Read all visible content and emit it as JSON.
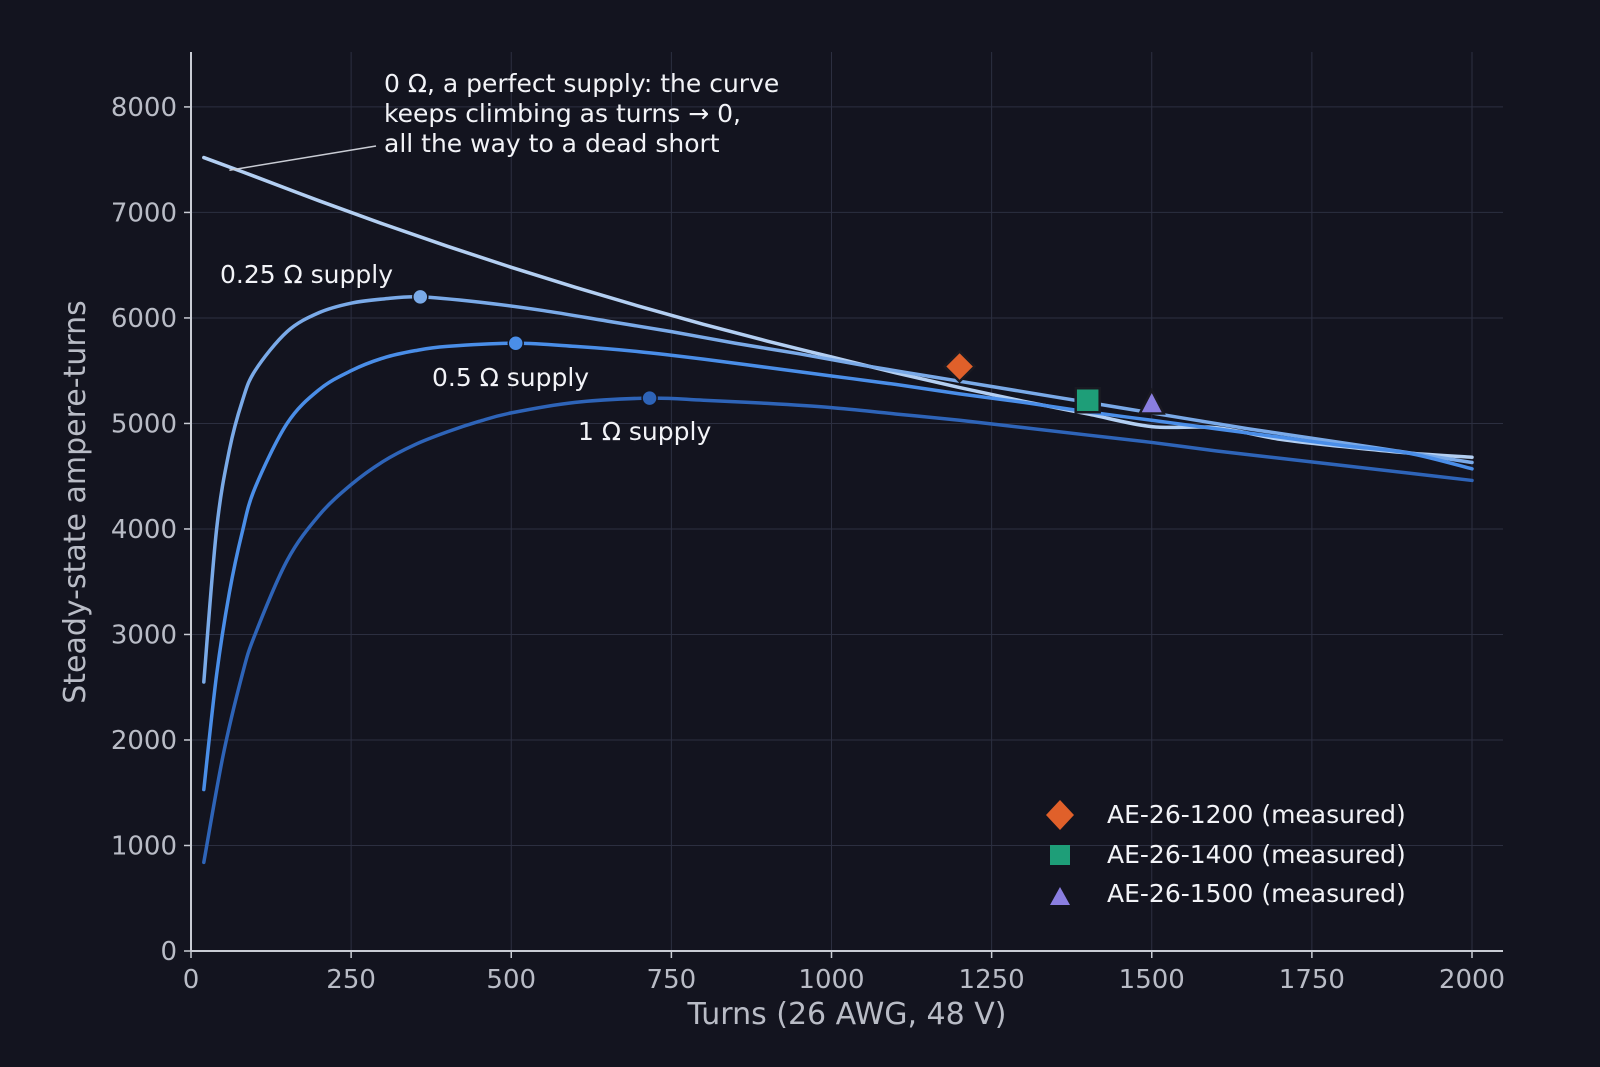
{
  "chart_data": {
    "type": "line",
    "title": "",
    "xlabel": "Turns (26 AWG, 48 V)",
    "ylabel": "Steady-state ampere-turns",
    "xlim": [
      0,
      2050
    ],
    "ylim": [
      0,
      8500
    ],
    "xticks": [
      0,
      250,
      500,
      750,
      1000,
      1250,
      1500,
      1750,
      2000
    ],
    "yticks": [
      0,
      1000,
      2000,
      3000,
      4000,
      5000,
      6000,
      7000,
      8000
    ],
    "grid": true,
    "series": [
      {
        "name": "0 Ω",
        "color": "#b3cff2",
        "x": [
          20,
          100,
          200,
          300,
          400,
          500,
          600,
          700,
          800,
          900,
          1000,
          1100,
          1200,
          1300,
          1400,
          1500,
          1600,
          1700,
          1800,
          1900,
          2000
        ],
        "y": [
          7520,
          7340,
          7110,
          6890,
          6680,
          6480,
          6290,
          6110,
          5940,
          5780,
          5630,
          5480,
          5340,
          5210,
          5090,
          4970,
          4960,
          4850,
          4780,
          4720,
          4680
        ]
      },
      {
        "name": "0.25 Ω supply",
        "color": "#7aaae8",
        "x": [
          20,
          40,
          60,
          80,
          100,
          150,
          200,
          250,
          300,
          358,
          450,
          550,
          650,
          750,
          850,
          950,
          1050,
          1150,
          1250,
          1350,
          1450,
          1550,
          1650,
          1750,
          1850,
          2000
        ],
        "y": [
          2550,
          4000,
          4750,
          5210,
          5500,
          5870,
          6050,
          6140,
          6180,
          6200,
          6150,
          6070,
          5970,
          5870,
          5760,
          5660,
          5550,
          5450,
          5350,
          5250,
          5150,
          5050,
          4950,
          4860,
          4770,
          4630
        ]
      },
      {
        "name": "0.5 Ω supply",
        "color": "#4a8ee8",
        "x": [
          20,
          40,
          60,
          80,
          100,
          150,
          200,
          250,
          300,
          350,
          400,
          507,
          600,
          700,
          800,
          900,
          1000,
          1100,
          1200,
          1300,
          1400,
          1500,
          1600,
          1700,
          1800,
          1900,
          2000
        ],
        "y": [
          1530,
          2620,
          3400,
          3970,
          4390,
          5000,
          5320,
          5500,
          5620,
          5690,
          5730,
          5760,
          5730,
          5680,
          5610,
          5530,
          5450,
          5370,
          5280,
          5200,
          5110,
          5030,
          4950,
          4870,
          4790,
          4720,
          4570
        ]
      },
      {
        "name": "1 Ω supply",
        "color": "#2e64b8",
        "x": [
          20,
          50,
          80,
          100,
          150,
          200,
          250,
          300,
          350,
          400,
          450,
          500,
          600,
          716,
          800,
          900,
          1000,
          1100,
          1200,
          1300,
          1400,
          1500,
          1600,
          1700,
          1800,
          1900,
          2000
        ],
        "y": [
          840,
          1850,
          2620,
          3000,
          3700,
          4130,
          4420,
          4640,
          4800,
          4920,
          5020,
          5100,
          5200,
          5240,
          5220,
          5190,
          5150,
          5090,
          5030,
          4960,
          4890,
          4820,
          4740,
          4670,
          4600,
          4530,
          4460
        ]
      }
    ],
    "peaks": [
      {
        "series": "0.25 Ω supply",
        "x": 358,
        "y": 6200
      },
      {
        "series": "0.5 Ω supply",
        "x": 507,
        "y": 5760
      },
      {
        "series": "1 Ω supply",
        "x": 716,
        "y": 5240
      }
    ],
    "measured": [
      {
        "name": "AE-26-1200 (measured)",
        "x": 1200,
        "y": 5540,
        "marker": "diamond",
        "color": "#e0602a"
      },
      {
        "name": "AE-26-1400 (measured)",
        "x": 1400,
        "y": 5220,
        "marker": "square",
        "color": "#1e9e78"
      },
      {
        "name": "AE-26-1500 (measured)",
        "x": 1500,
        "y": 5180,
        "marker": "triangle",
        "color": "#8a7ee0"
      }
    ],
    "annotations": {
      "zero_ohm_lines": [
        "0 Ω, a perfect supply: the curve",
        "keeps climbing as turns → 0,",
        "all the way to a dead short"
      ],
      "zero_ohm_target": {
        "x": 60,
        "y": 7400
      },
      "quarter_ohm": "0.25 Ω supply",
      "half_ohm": "0.5 Ω supply",
      "one_ohm": "1 Ω supply"
    },
    "legend_position": "lower-right",
    "colors": {
      "background": "#13141f",
      "grid": "#2c2f40",
      "axis": "#c9ccd4",
      "text": "#b9bcc6"
    }
  }
}
